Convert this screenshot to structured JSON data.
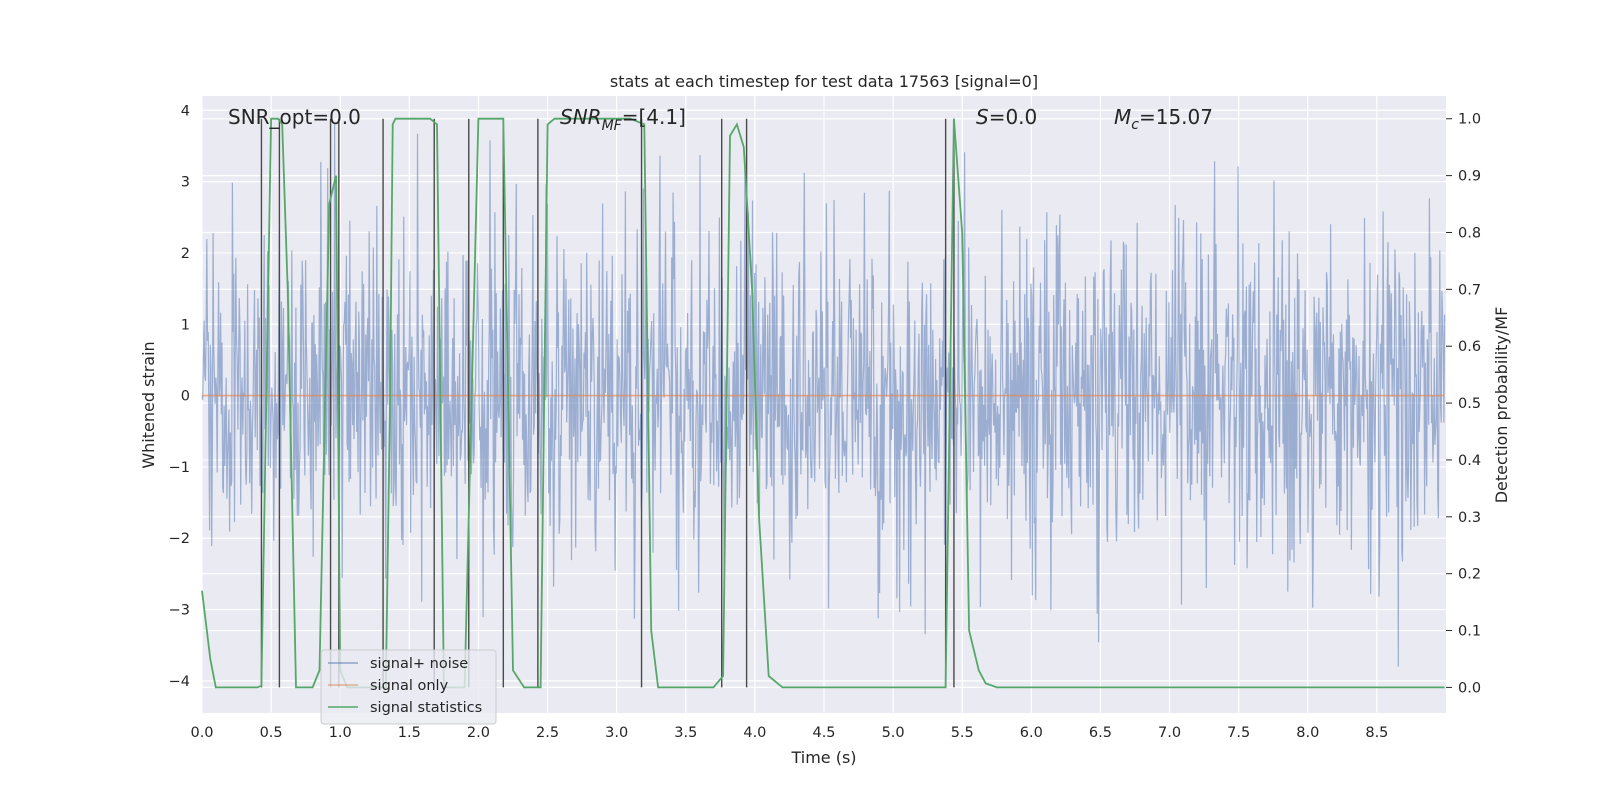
{
  "chart_data": {
    "type": "line",
    "title": "stats at each timestep for test data 17563 [signal=0]",
    "xlabel": "Time (s)",
    "ylabel_left": "Whitened strain",
    "ylabel_right": "Detection probability/MF",
    "xlim": [
      0.0,
      9.0
    ],
    "ylim_left": [
      -4.45,
      4.2
    ],
    "ylim_right": [
      -0.045,
      1.04
    ],
    "x_ticks": [
      "0.0",
      "0.5",
      "1.0",
      "1.5",
      "2.0",
      "2.5",
      "3.0",
      "3.5",
      "4.0",
      "4.5",
      "5.0",
      "5.5",
      "6.0",
      "6.5",
      "7.0",
      "7.5",
      "8.0",
      "8.5"
    ],
    "y_ticks_left": [
      "4",
      "3",
      "2",
      "1",
      "0",
      "−1",
      "−2",
      "−3",
      "−4"
    ],
    "y_ticks_right": [
      "1.0",
      "0.9",
      "0.8",
      "0.7",
      "0.6",
      "0.5",
      "0.4",
      "0.3",
      "0.2",
      "0.1",
      "0.0"
    ],
    "grid": true,
    "legend_position": "bottom-left",
    "annotations": {
      "snr_opt": "SNR_opt=0.0",
      "snr_mf_main": "SNR",
      "snr_mf_sub": "MF",
      "snr_mf_value": "=[4.1]",
      "s_main": "S",
      "s_value": "=0.0",
      "mc_main": "M",
      "mc_sub": "c",
      "mc_value": "=15.07"
    },
    "series": [
      {
        "name": "signal+ noise",
        "axis": "left",
        "color": "#4c72b0",
        "description": "whitened strain noise, amplitude mostly within ±2.5, peaks near ±3.5",
        "x_range": [
          0.0,
          8.99
        ],
        "amplitude_typical": 1.5,
        "amplitude_peak": 3.8,
        "samples": 1800
      },
      {
        "name": "signal only",
        "axis": "left",
        "color": "#dd8452",
        "x": [
          0.0,
          8.99
        ],
        "y": [
          0.0,
          0.0
        ]
      },
      {
        "name": "signal statistics",
        "axis": "right",
        "color": "#55a868",
        "x": [
          0.0,
          0.06,
          0.1,
          0.2,
          0.3,
          0.4,
          0.43,
          0.5,
          0.55,
          0.58,
          0.62,
          0.68,
          0.73,
          0.8,
          0.85,
          0.92,
          0.97,
          1.0,
          1.05,
          1.1,
          1.2,
          1.3,
          1.33,
          1.36,
          1.38,
          1.4,
          1.5,
          1.6,
          1.65,
          1.7,
          1.75,
          1.8,
          1.9,
          1.95,
          2.0,
          2.1,
          2.18,
          2.25,
          2.33,
          2.4,
          2.45,
          2.5,
          2.55,
          2.6,
          2.7,
          2.8,
          3.0,
          3.1,
          3.2,
          3.25,
          3.3,
          3.35,
          3.5,
          3.6,
          3.7,
          3.77,
          3.82,
          3.87,
          3.92,
          3.98,
          4.03,
          4.1,
          4.2,
          4.5,
          5.0,
          5.3,
          5.38,
          5.44,
          5.5,
          5.55,
          5.62,
          5.67,
          5.75,
          5.9,
          6.5,
          7.5,
          8.5,
          8.99
        ],
        "y": [
          0.17,
          0.05,
          0.0,
          0.0,
          0.0,
          0.0,
          0.003,
          1.0,
          1.0,
          0.99,
          0.7,
          0.0,
          0.0,
          0.0,
          0.03,
          0.85,
          0.9,
          0.03,
          0.0,
          0.0,
          0.0,
          0.0,
          0.0,
          0.5,
          0.99,
          1.0,
          1.0,
          1.0,
          1.0,
          0.99,
          0.0,
          0.0,
          0.0,
          0.5,
          1.0,
          1.0,
          1.0,
          0.03,
          0.0,
          0.0,
          0.0,
          0.99,
          1.0,
          1.0,
          1.0,
          1.0,
          1.0,
          1.0,
          0.99,
          0.1,
          0.0,
          0.0,
          0.0,
          0.0,
          0.0,
          0.02,
          0.97,
          0.99,
          0.95,
          0.7,
          0.3,
          0.02,
          0.0,
          0.0,
          0.0,
          0.0,
          0.0,
          1.0,
          0.8,
          0.1,
          0.03,
          0.007,
          0.0,
          0.0,
          0.0,
          0.0,
          0.0,
          0.0
        ]
      }
    ],
    "vertical_markers": [
      0.43,
      0.56,
      0.93,
      0.99,
      1.31,
      1.68,
      1.93,
      2.18,
      2.43,
      3.18,
      3.76,
      3.94,
      5.38,
      5.44
    ],
    "marker_color": "#4a4a4a"
  },
  "legend": {
    "items": [
      {
        "label": "signal+ noise",
        "color": "#4c72b0"
      },
      {
        "label": "signal only",
        "color": "#dd8452"
      },
      {
        "label": "signal statistics",
        "color": "#55a868"
      }
    ]
  },
  "colors": {
    "plot_background": "#eaeaf2",
    "grid": "#ffffff",
    "text": "#262626"
  }
}
